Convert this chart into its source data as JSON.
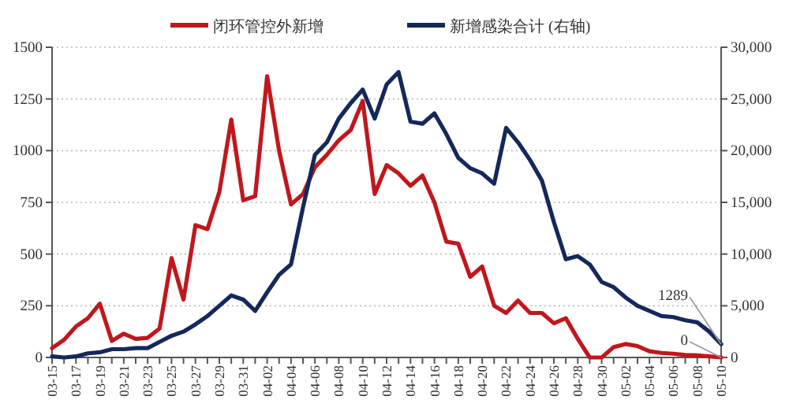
{
  "chart_data": {
    "type": "line",
    "categories": [
      "03-15",
      null,
      "03-17",
      null,
      "03-19",
      null,
      "03-21",
      null,
      "03-23",
      null,
      "03-25",
      null,
      "03-27",
      null,
      "03-29",
      null,
      "03-31",
      null,
      "04-02",
      null,
      "04-04",
      null,
      "04-06",
      null,
      "04-08",
      null,
      "04-10",
      null,
      "04-12",
      null,
      "04-14",
      null,
      "04-16",
      null,
      "04-18",
      null,
      "04-20",
      null,
      "04-22",
      null,
      "04-24",
      null,
      "04-26",
      null,
      "04-28",
      null,
      "04-30",
      null,
      "05-02",
      null,
      "05-04",
      null,
      "05-06",
      null,
      "05-08",
      null,
      "05-10"
    ],
    "series": [
      {
        "name": "闭环管控外新增",
        "color": "#c0171d",
        "values": [
          45,
          85,
          150,
          190,
          260,
          80,
          115,
          90,
          95,
          140,
          480,
          280,
          640,
          620,
          800,
          1150,
          760,
          780,
          1360,
          1000,
          740,
          790,
          920,
          980,
          1050,
          1100,
          1240,
          790,
          930,
          890,
          830,
          880,
          750,
          560,
          550,
          390,
          440,
          250,
          215,
          275,
          215,
          215,
          165,
          190,
          90,
          0,
          0,
          50,
          65,
          55,
          30,
          22,
          18,
          12,
          10,
          5,
          0
        ]
      },
      {
        "name": "新增感染合计 (右轴)",
        "color": "#14295a",
        "axis": "y2",
        "values": [
          100,
          0,
          100,
          400,
          500,
          800,
          800,
          900,
          900,
          1500,
          2100,
          2500,
          3200,
          4000,
          5000,
          6000,
          5600,
          4500,
          6300,
          8000,
          9000,
          14500,
          19600,
          20800,
          23100,
          24600,
          25900,
          23100,
          26400,
          27600,
          22800,
          22600,
          23600,
          21600,
          19300,
          18300,
          17800,
          16800,
          22200,
          20800,
          19100,
          17100,
          13100,
          9500,
          9800,
          9000,
          7300,
          6800,
          5800,
          5000,
          4500,
          4000,
          3900,
          3600,
          3400,
          2500,
          1289
        ]
      }
    ],
    "ylim": [
      0,
      1500
    ],
    "yticks": [
      0,
      250,
      500,
      750,
      1000,
      1250,
      1500
    ],
    "y2lim": [
      0,
      30000
    ],
    "y2ticks": [
      0,
      {
        "value": 5000,
        "label": "5,000"
      },
      {
        "value": 10000,
        "label": "10,000"
      },
      {
        "value": 15000,
        "label": "15,000"
      },
      {
        "value": 20000,
        "label": "20,000"
      },
      {
        "value": 25000,
        "label": "25,000"
      },
      {
        "value": 30000,
        "label": "30,000"
      }
    ],
    "annotations": [
      {
        "text": "0",
        "x": "05-10",
        "y": 0
      },
      {
        "text": "1289",
        "x": "05-10",
        "y": 64
      }
    ],
    "grid": "y",
    "legend": "top",
    "line_style": "solid",
    "marker": "none"
  }
}
